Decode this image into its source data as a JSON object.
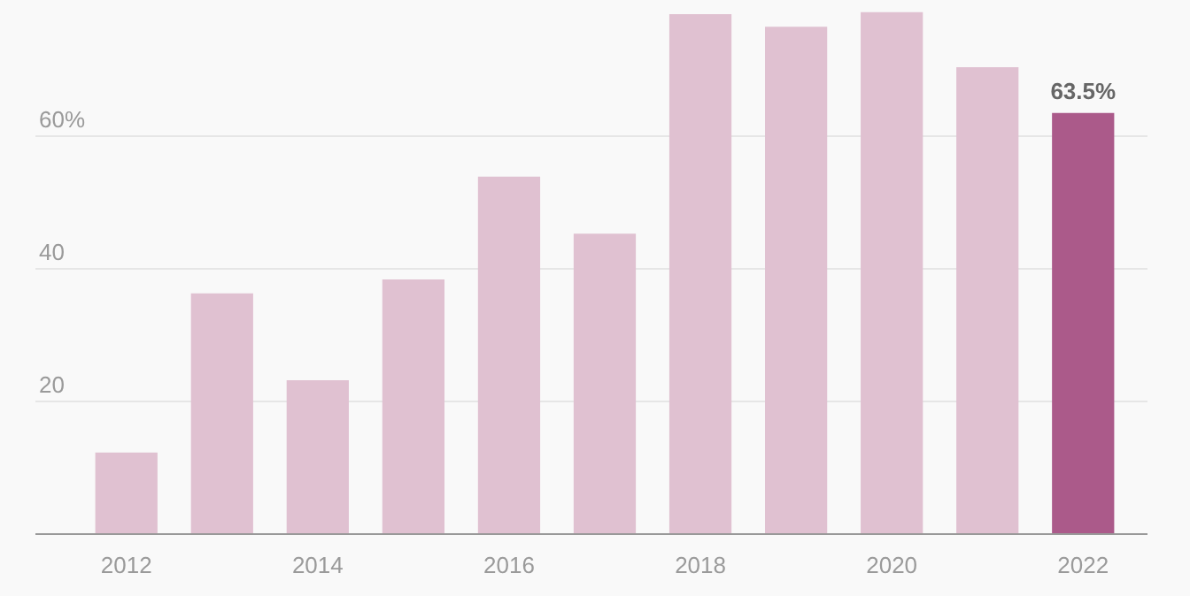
{
  "chart_data": {
    "type": "bar",
    "categories": [
      "2012",
      null,
      "2014",
      null,
      "2016",
      null,
      "2018",
      null,
      "2020",
      null,
      "2022"
    ],
    "values": [
      12.3,
      36.3,
      23.2,
      38.4,
      53.9,
      45.3,
      78.4,
      76.5,
      78.7,
      70.4,
      63.5
    ],
    "colors": [
      "#e0c1d1",
      "#e0c1d1",
      "#e0c1d1",
      "#e0c1d1",
      "#e0c1d1",
      "#e0c1d1",
      "#e0c1d1",
      "#e0c1d1",
      "#e0c1d1",
      "#e0c1d1",
      "#ab5a8a"
    ],
    "value_labels": [
      null,
      null,
      null,
      null,
      null,
      null,
      null,
      null,
      null,
      null,
      "63.5%"
    ],
    "ylim": [
      0,
      80
    ],
    "yticks": [
      20,
      40,
      {
        "value": 60,
        "label": "60%"
      }
    ],
    "grid": "y"
  }
}
